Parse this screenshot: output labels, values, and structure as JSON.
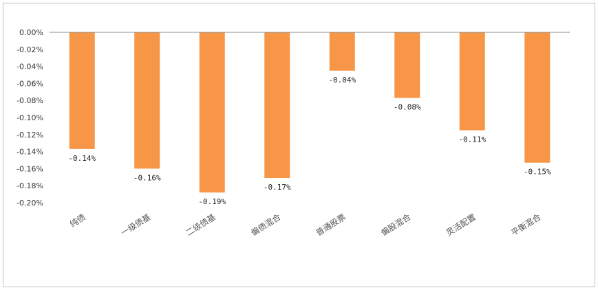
{
  "chart_data": {
    "type": "bar",
    "categories": [
      "纯债",
      "一级债基",
      "二级债基",
      "偏债混合",
      "普通股票",
      "偏股混合",
      "灵活配置",
      "平衡混合"
    ],
    "values": [
      -0.137,
      -0.16,
      -0.188,
      -0.171,
      -0.045,
      -0.077,
      -0.115,
      -0.153
    ],
    "data_labels": [
      "-0.14%",
      "-0.16%",
      "-0.19%",
      "-0.17%",
      "-0.04%",
      "-0.08%",
      "-0.11%",
      "-0.15%"
    ],
    "y_ticks": [
      "0.00%",
      "-0.02%",
      "-0.04%",
      "-0.06%",
      "-0.08%",
      "-0.10%",
      "-0.12%",
      "-0.14%",
      "-0.16%",
      "-0.18%",
      "-0.20%"
    ],
    "ylim": [
      -0.2,
      0.0
    ],
    "bar_color": "#f79646",
    "grid": false,
    "legend": "none"
  }
}
